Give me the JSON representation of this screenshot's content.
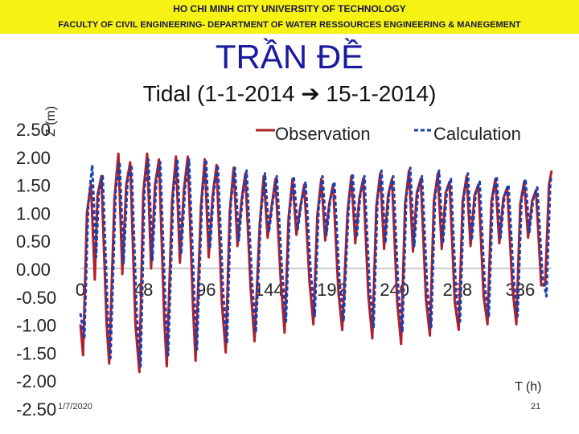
{
  "header": {
    "university": "HO CHI MINH CITY UNIVERSITY OF TECHNOLOGY",
    "faculty": "FACULTY OF CIVIL ENGINEERING- DEPARTMENT OF WATER RESSOURCES ENGINEERING & MANEGEMENT",
    "banner_color": "#f5f214"
  },
  "slide": {
    "title": "TRẦN ĐỀ",
    "date": "1/7/2020",
    "page_number": "21"
  },
  "chart_data": {
    "type": "line",
    "title": "Tidal (1-1-2014 ➔ 15-1-2014)",
    "ylabel": "Z (m)",
    "xlabel": "T (h)",
    "ylim": [
      -2.5,
      2.5
    ],
    "xlim": [
      0,
      360
    ],
    "yticks": [
      "2.50",
      "2.00",
      "1.50",
      "1.00",
      "0.50",
      "0.00",
      "-0.50",
      "-1.00",
      "-1.50",
      "-2.00",
      "-2.50"
    ],
    "xticks": [
      "0",
      "48",
      "96",
      "144",
      "192",
      "240",
      "288",
      "336"
    ],
    "legend_position": "top-right",
    "series": [
      {
        "name": "Observation",
        "color": "#b0202a",
        "style": "solid",
        "points": [
          [
            0,
            -1.0
          ],
          [
            2,
            -1.55
          ],
          [
            5,
            1.0
          ],
          [
            8,
            1.5
          ],
          [
            11,
            -0.2
          ],
          [
            13,
            1.3
          ],
          [
            16,
            1.65
          ],
          [
            20,
            -1.0
          ],
          [
            22,
            -1.7
          ],
          [
            26,
            1.25
          ],
          [
            29,
            2.05
          ],
          [
            32,
            -0.1
          ],
          [
            35,
            1.5
          ],
          [
            38,
            1.9
          ],
          [
            42,
            -1.0
          ],
          [
            45,
            -1.85
          ],
          [
            48,
            1.35
          ],
          [
            51,
            2.05
          ],
          [
            54,
            0.0
          ],
          [
            57,
            1.5
          ],
          [
            60,
            1.95
          ],
          [
            64,
            -0.9
          ],
          [
            66,
            -1.75
          ],
          [
            70,
            1.2
          ],
          [
            73,
            2.0
          ],
          [
            76,
            0.1
          ],
          [
            79,
            1.4
          ],
          [
            82,
            2.0
          ],
          [
            86,
            -0.7
          ],
          [
            88,
            -1.65
          ],
          [
            92,
            1.1
          ],
          [
            95,
            1.95
          ],
          [
            98,
            0.2
          ],
          [
            101,
            1.3
          ],
          [
            104,
            1.85
          ],
          [
            108,
            -0.6
          ],
          [
            111,
            -1.5
          ],
          [
            114,
            1.0
          ],
          [
            117,
            1.8
          ],
          [
            120,
            0.4
          ],
          [
            123,
            1.2
          ],
          [
            126,
            1.7
          ],
          [
            130,
            -0.35
          ],
          [
            133,
            -1.3
          ],
          [
            137,
            0.8
          ],
          [
            140,
            1.65
          ],
          [
            143,
            0.55
          ],
          [
            146,
            1.1
          ],
          [
            149,
            1.6
          ],
          [
            153,
            -0.2
          ],
          [
            156,
            -1.15
          ],
          [
            159,
            0.9
          ],
          [
            162,
            1.6
          ],
          [
            165,
            0.6
          ],
          [
            168,
            1.1
          ],
          [
            171,
            1.5
          ],
          [
            175,
            -0.25
          ],
          [
            178,
            -1.0
          ],
          [
            181,
            0.95
          ],
          [
            184,
            1.6
          ],
          [
            187,
            0.5
          ],
          [
            190,
            1.15
          ],
          [
            193,
            1.5
          ],
          [
            197,
            -0.4
          ],
          [
            200,
            -1.1
          ],
          [
            204,
            1.0
          ],
          [
            207,
            1.65
          ],
          [
            210,
            0.45
          ],
          [
            213,
            1.25
          ],
          [
            216,
            1.6
          ],
          [
            220,
            -0.5
          ],
          [
            223,
            -1.25
          ],
          [
            226,
            1.1
          ],
          [
            229,
            1.7
          ],
          [
            232,
            0.35
          ],
          [
            235,
            1.3
          ],
          [
            238,
            1.6
          ],
          [
            242,
            -0.6
          ],
          [
            245,
            -1.35
          ],
          [
            248,
            1.15
          ],
          [
            251,
            1.75
          ],
          [
            254,
            0.3
          ],
          [
            257,
            1.35
          ],
          [
            260,
            1.6
          ],
          [
            264,
            -0.55
          ],
          [
            267,
            -1.2
          ],
          [
            270,
            1.2
          ],
          [
            273,
            1.7
          ],
          [
            276,
            0.35
          ],
          [
            279,
            1.35
          ],
          [
            282,
            1.55
          ],
          [
            286,
            -0.6
          ],
          [
            289,
            -1.1
          ],
          [
            292,
            1.2
          ],
          [
            295,
            1.65
          ],
          [
            298,
            0.4
          ],
          [
            301,
            1.3
          ],
          [
            304,
            1.5
          ],
          [
            308,
            -0.5
          ],
          [
            311,
            -1.0
          ],
          [
            314,
            1.2
          ],
          [
            317,
            1.6
          ],
          [
            320,
            0.45
          ],
          [
            323,
            1.25
          ],
          [
            326,
            1.45
          ],
          [
            330,
            -0.35
          ],
          [
            333,
            -1.0
          ],
          [
            336,
            1.15
          ],
          [
            339,
            1.55
          ],
          [
            342,
            0.55
          ],
          [
            345,
            1.2
          ],
          [
            348,
            1.4
          ],
          [
            352,
            -0.3
          ],
          [
            355,
            -0.3
          ],
          [
            358,
            1.5
          ],
          [
            360,
            1.75
          ]
        ]
      },
      {
        "name": "Calculation",
        "color": "#1a3fb0",
        "style": "dashed",
        "points": [
          [
            0,
            -0.8
          ],
          [
            3,
            -1.25
          ],
          [
            6,
            1.15
          ],
          [
            9,
            1.85
          ],
          [
            12,
            0.2
          ],
          [
            14,
            1.35
          ],
          [
            17,
            1.65
          ],
          [
            21,
            -0.9
          ],
          [
            23,
            -1.6
          ],
          [
            27,
            1.4
          ],
          [
            30,
            1.9
          ],
          [
            33,
            0.1
          ],
          [
            36,
            1.55
          ],
          [
            39,
            1.85
          ],
          [
            43,
            -0.8
          ],
          [
            46,
            -1.75
          ],
          [
            49,
            1.45
          ],
          [
            52,
            1.95
          ],
          [
            55,
            0.15
          ],
          [
            58,
            1.55
          ],
          [
            61,
            1.9
          ],
          [
            65,
            -0.7
          ],
          [
            67,
            -1.55
          ],
          [
            71,
            1.35
          ],
          [
            74,
            1.95
          ],
          [
            77,
            0.25
          ],
          [
            80,
            1.45
          ],
          [
            83,
            1.95
          ],
          [
            87,
            -0.5
          ],
          [
            89,
            -1.45
          ],
          [
            93,
            1.3
          ],
          [
            96,
            1.95
          ],
          [
            99,
            0.35
          ],
          [
            102,
            1.4
          ],
          [
            105,
            1.85
          ],
          [
            109,
            -0.4
          ],
          [
            112,
            -1.35
          ],
          [
            115,
            1.2
          ],
          [
            118,
            1.8
          ],
          [
            121,
            0.5
          ],
          [
            124,
            1.3
          ],
          [
            127,
            1.75
          ],
          [
            131,
            -0.2
          ],
          [
            134,
            -1.15
          ],
          [
            138,
            1.0
          ],
          [
            141,
            1.7
          ],
          [
            144,
            0.65
          ],
          [
            147,
            1.2
          ],
          [
            150,
            1.65
          ],
          [
            154,
            -0.05
          ],
          [
            157,
            -0.95
          ],
          [
            160,
            1.05
          ],
          [
            163,
            1.65
          ],
          [
            166,
            0.7
          ],
          [
            169,
            1.2
          ],
          [
            172,
            1.55
          ],
          [
            176,
            -0.1
          ],
          [
            179,
            -0.85
          ],
          [
            182,
            1.1
          ],
          [
            185,
            1.65
          ],
          [
            188,
            0.6
          ],
          [
            191,
            1.25
          ],
          [
            194,
            1.55
          ],
          [
            198,
            -0.25
          ],
          [
            201,
            -0.95
          ],
          [
            205,
            1.15
          ],
          [
            208,
            1.7
          ],
          [
            211,
            0.55
          ],
          [
            214,
            1.35
          ],
          [
            217,
            1.65
          ],
          [
            221,
            -0.35
          ],
          [
            224,
            -1.05
          ],
          [
            227,
            1.25
          ],
          [
            230,
            1.75
          ],
          [
            233,
            0.45
          ],
          [
            236,
            1.4
          ],
          [
            239,
            1.65
          ],
          [
            243,
            -0.45
          ],
          [
            246,
            -1.15
          ],
          [
            249,
            1.3
          ],
          [
            252,
            1.8
          ],
          [
            255,
            0.4
          ],
          [
            258,
            1.4
          ],
          [
            261,
            1.65
          ],
          [
            265,
            -0.4
          ],
          [
            268,
            -1.05
          ],
          [
            271,
            1.3
          ],
          [
            274,
            1.75
          ],
          [
            277,
            0.45
          ],
          [
            280,
            1.4
          ],
          [
            283,
            1.6
          ],
          [
            287,
            -0.45
          ],
          [
            290,
            -0.95
          ],
          [
            293,
            1.3
          ],
          [
            296,
            1.7
          ],
          [
            299,
            0.5
          ],
          [
            302,
            1.35
          ],
          [
            305,
            1.55
          ],
          [
            309,
            -0.35
          ],
          [
            312,
            -0.85
          ],
          [
            315,
            1.3
          ],
          [
            318,
            1.65
          ],
          [
            321,
            0.55
          ],
          [
            324,
            1.3
          ],
          [
            327,
            1.5
          ],
          [
            331,
            -0.2
          ],
          [
            334,
            -0.85
          ],
          [
            337,
            1.25
          ],
          [
            340,
            1.6
          ],
          [
            343,
            0.65
          ],
          [
            346,
            1.25
          ],
          [
            349,
            1.45
          ],
          [
            353,
            -0.15
          ],
          [
            356,
            -0.5
          ],
          [
            359,
            1.55
          ],
          [
            360,
            1.65
          ]
        ]
      }
    ]
  }
}
